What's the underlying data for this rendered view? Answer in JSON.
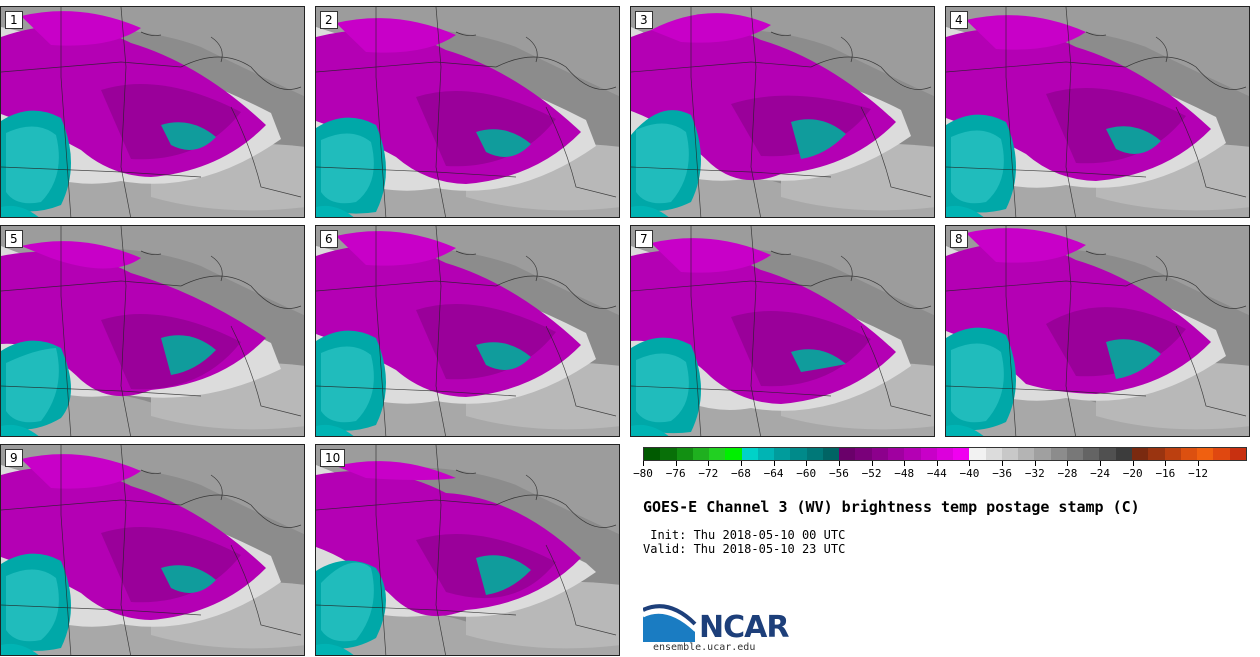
{
  "panels": [
    {
      "label": "1"
    },
    {
      "label": "2"
    },
    {
      "label": "3"
    },
    {
      "label": "4"
    },
    {
      "label": "5"
    },
    {
      "label": "6"
    },
    {
      "label": "7"
    },
    {
      "label": "8"
    },
    {
      "label": "9"
    },
    {
      "label": "10"
    }
  ],
  "colorbar": {
    "colors": [
      "#005a00",
      "#087008",
      "#129012",
      "#1fb01f",
      "#22d022",
      "#00f000",
      "#00d2c8",
      "#00b4b4",
      "#009c9c",
      "#008a8a",
      "#007878",
      "#006464",
      "#6a006a",
      "#7a007a",
      "#8c008c",
      "#a000a0",
      "#b400b4",
      "#c800c8",
      "#dc00dc",
      "#f000f0",
      "#f2f2f2",
      "#dcdcdc",
      "#c8c8c8",
      "#b4b4b4",
      "#a0a0a0",
      "#8c8c8c",
      "#787878",
      "#646464",
      "#505050",
      "#3c3c3c",
      "#7a2a10",
      "#9a3410",
      "#bc4010",
      "#dc5010",
      "#f06010",
      "#e04810",
      "#c83010"
    ],
    "tick_labels": [
      "-80",
      "-76",
      "-72",
      "-68",
      "-64",
      "-60",
      "-56",
      "-52",
      "-48",
      "-44",
      "-40",
      "-36",
      "-32",
      "-28",
      "-24",
      "-20",
      "-16",
      "-12"
    ]
  },
  "title": "GOES-E Channel 3 (WV) brightness temp postage stamp (C)",
  "init": " Init: Thu 2018-05-10 00 UTC",
  "valid": "Valid: Thu 2018-05-10 23 UTC",
  "logo": {
    "text": "NCAR",
    "url": "ensemble.ucar.edu"
  }
}
